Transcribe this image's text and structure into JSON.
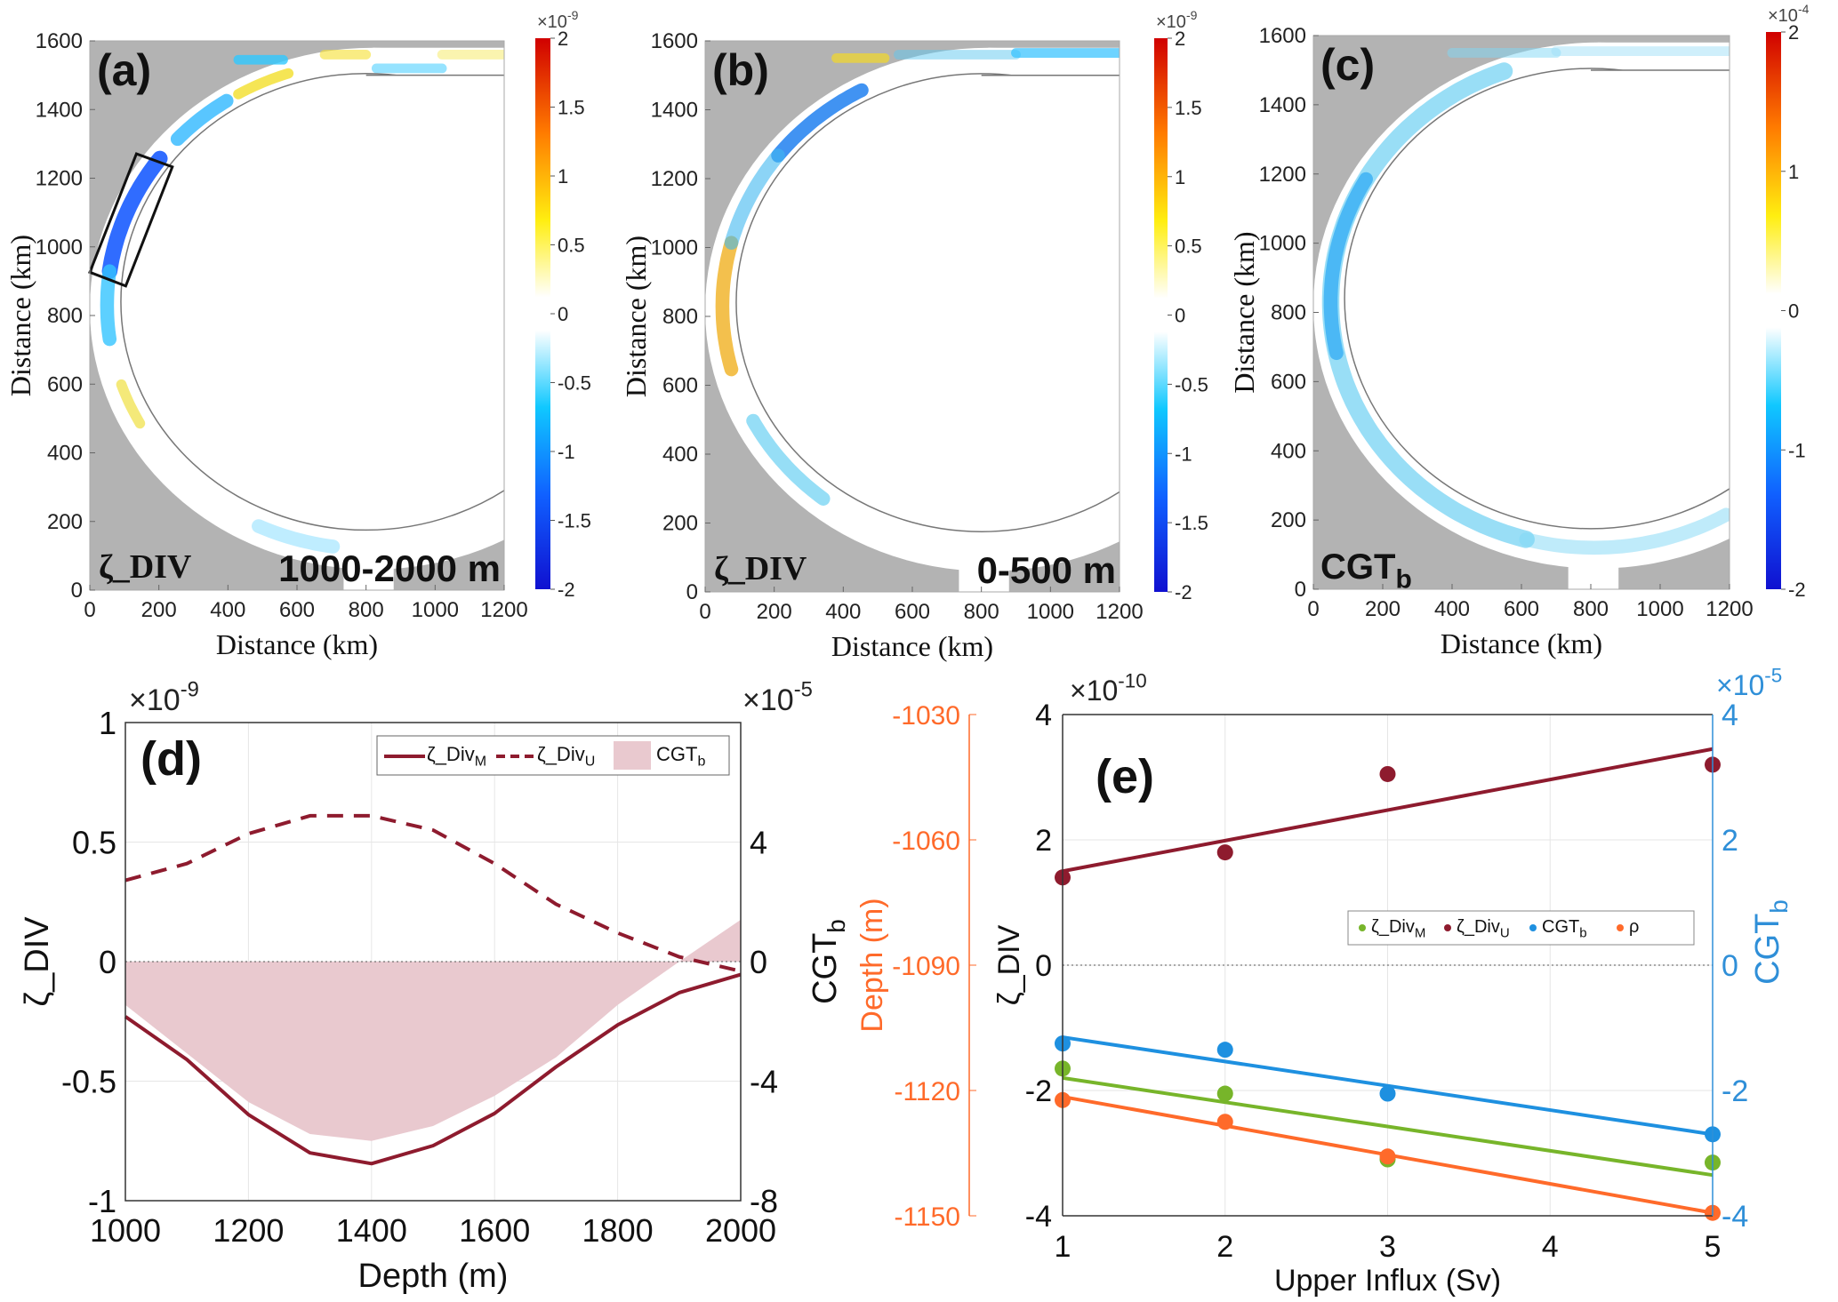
{
  "chart_data": [
    {
      "panel": "(a)",
      "type": "heatmap",
      "xlabel": "Distance (km)",
      "ylabel": "Distance (km)",
      "xlim": [
        0,
        1200
      ],
      "ylim": [
        0,
        1600
      ],
      "xticks": [
        "0",
        "200",
        "400",
        "600",
        "800",
        "1000",
        "1200"
      ],
      "yticks": [
        "0",
        "200",
        "400",
        "600",
        "800",
        "1000",
        "1200",
        "1400",
        "1600"
      ],
      "colorbar": {
        "ticks": [
          "-2",
          "-1.5",
          "-1",
          "-0.5",
          "0",
          "0.5",
          "1",
          "1.5",
          "2"
        ],
        "range": [
          -2,
          2
        ],
        "multiplier": "×10",
        "exponent": "-9",
        "colormap": "jet with white centre"
      },
      "annotation_variable": "ζ_DIV",
      "annotation_depth": "1000-2000 m",
      "highlight_box": true,
      "land_color": "#b3b3b3"
    },
    {
      "panel": "(b)",
      "type": "heatmap",
      "xlabel": "Distance (km)",
      "ylabel": "Distance (km)",
      "xlim": [
        0,
        1200
      ],
      "ylim": [
        0,
        1600
      ],
      "xticks": [
        "0",
        "200",
        "400",
        "600",
        "800",
        "1000",
        "1200"
      ],
      "yticks": [
        "0",
        "200",
        "400",
        "600",
        "800",
        "1000",
        "1200",
        "1400",
        "1600"
      ],
      "colorbar": {
        "ticks": [
          "-2",
          "-1.5",
          "-1",
          "-0.5",
          "0",
          "0.5",
          "1",
          "1.5",
          "2"
        ],
        "range": [
          -2,
          2
        ],
        "multiplier": "×10",
        "exponent": "-9",
        "colormap": "jet with white centre"
      },
      "annotation_variable": "ζ_DIV",
      "annotation_depth": "0-500 m",
      "land_color": "#b3b3b3"
    },
    {
      "panel": "(c)",
      "type": "heatmap",
      "xlabel": "Distance (km)",
      "ylabel": "Distance (km)",
      "xlim": [
        0,
        1200
      ],
      "ylim": [
        0,
        1600
      ],
      "xticks": [
        "0",
        "200",
        "400",
        "600",
        "800",
        "1000",
        "1200"
      ],
      "yticks": [
        "0",
        "200",
        "400",
        "600",
        "800",
        "1000",
        "1200",
        "1400",
        "1600"
      ],
      "colorbar": {
        "ticks": [
          "-2",
          "-1",
          "0",
          "1",
          "2"
        ],
        "range": [
          -2,
          2
        ],
        "multiplier": "×10",
        "exponent": "-4",
        "colormap": "jet with white centre"
      },
      "annotation_variable": "CGT",
      "annotation_sub": "b",
      "land_color": "#b3b3b3"
    },
    {
      "panel": "(d)",
      "type": "line",
      "xlabel": "Depth (m)",
      "ylabel": "ζ_DIV",
      "ylabel_right": "CGT",
      "ylabel_right_sub": "b",
      "xlim": [
        1000,
        2000
      ],
      "ylim": [
        -1,
        1
      ],
      "ylim_right": [
        -8,
        8
      ],
      "xticks": [
        "1000",
        "1200",
        "1400",
        "1600",
        "1800",
        "2000"
      ],
      "yticks": [
        "-1",
        "-0.5",
        "0",
        "0.5",
        "1"
      ],
      "yticks_right": [
        "-8",
        "-4",
        "0",
        "4"
      ],
      "y_multiplier": "×10",
      "y_exponent": "-9",
      "y_right_multiplier": "×10",
      "y_right_exponent": "-5",
      "grid": true,
      "legend_position": "top-right",
      "x": [
        1000,
        1100,
        1200,
        1300,
        1400,
        1500,
        1600,
        1700,
        1800,
        1900,
        2000
      ],
      "series": [
        {
          "name": "ζ_Div",
          "sub": "M",
          "style": "solid",
          "color": "#8e1b2e",
          "axis": "left",
          "values": [
            -0.23,
            -0.41,
            -0.64,
            -0.8,
            -0.845,
            -0.77,
            -0.635,
            -0.44,
            -0.265,
            -0.13,
            -0.054
          ]
        },
        {
          "name": "ζ_Div",
          "sub": "U",
          "style": "dashed",
          "color": "#8e1b2e",
          "axis": "left",
          "values": [
            0.34,
            0.41,
            0.535,
            0.61,
            0.61,
            0.55,
            0.41,
            0.24,
            0.12,
            0.02,
            -0.04
          ]
        },
        {
          "name": "CGT",
          "sub": "b",
          "style": "area",
          "color": "#e9c9cf",
          "axis": "right",
          "values": [
            -1.45,
            -3.07,
            -4.7,
            -5.77,
            -6.0,
            -5.5,
            -4.49,
            -3.2,
            -1.45,
            0.0,
            1.4
          ]
        }
      ]
    },
    {
      "panel": "(e)",
      "type": "scatter",
      "xlabel": "Upper Influx (Sv)",
      "ylabel": "ζ_DIV",
      "ylabel_right": "CGT",
      "ylabel_right_sub": "b",
      "ylabel_depth": "Depth (m)",
      "xlim": [
        1,
        5
      ],
      "ylim": [
        -4,
        4
      ],
      "ylim_right": [
        -4,
        4
      ],
      "ylim_depth": [
        -1150,
        -1030
      ],
      "xticks": [
        "1",
        "2",
        "3",
        "4",
        "5"
      ],
      "yticks": [
        "-4",
        "-2",
        "0",
        "2",
        "4"
      ],
      "yticks_right": [
        "-4",
        "-2",
        "0",
        "2",
        "4"
      ],
      "yticks_depth": [
        "-1150",
        "-1120",
        "-1090",
        "-1060",
        "-1030"
      ],
      "y_multiplier": "×10",
      "y_exponent": "-10",
      "y_right_multiplier": "×10",
      "y_right_exponent": "-5",
      "grid": true,
      "legend_position": "center-right",
      "colors": {
        "right_axis": "#2f8fd8",
        "depth_axis": "#ff6a2a"
      },
      "x": [
        1,
        2,
        3,
        5
      ],
      "series": [
        {
          "name": "ζ_Div",
          "sub": "M",
          "color": "#77b52a",
          "axis": "left",
          "values": [
            -1.65,
            -2.05,
            -3.1,
            -3.15
          ],
          "fit": [
            -1.8,
            -3.35
          ]
        },
        {
          "name": "ζ_Div",
          "sub": "U",
          "color": "#8e1b2e",
          "axis": "left",
          "values": [
            1.4,
            1.8,
            3.05,
            3.2
          ],
          "fit": [
            1.5,
            3.45
          ]
        },
        {
          "name": "CGT",
          "sub": "b",
          "color": "#1e90e0",
          "axis": "right",
          "values": [
            -1.25,
            -1.35,
            -2.05,
            -2.7
          ],
          "fit": [
            -1.15,
            -2.7
          ]
        },
        {
          "name": "ρ",
          "sub": "",
          "color": "#ff6a2a",
          "axis": "depth",
          "values": [
            -1122.3,
            -1127.5,
            -1135.8,
            -1149.3
          ],
          "fit": [
            -1121.5,
            -1149.3
          ]
        }
      ]
    }
  ]
}
